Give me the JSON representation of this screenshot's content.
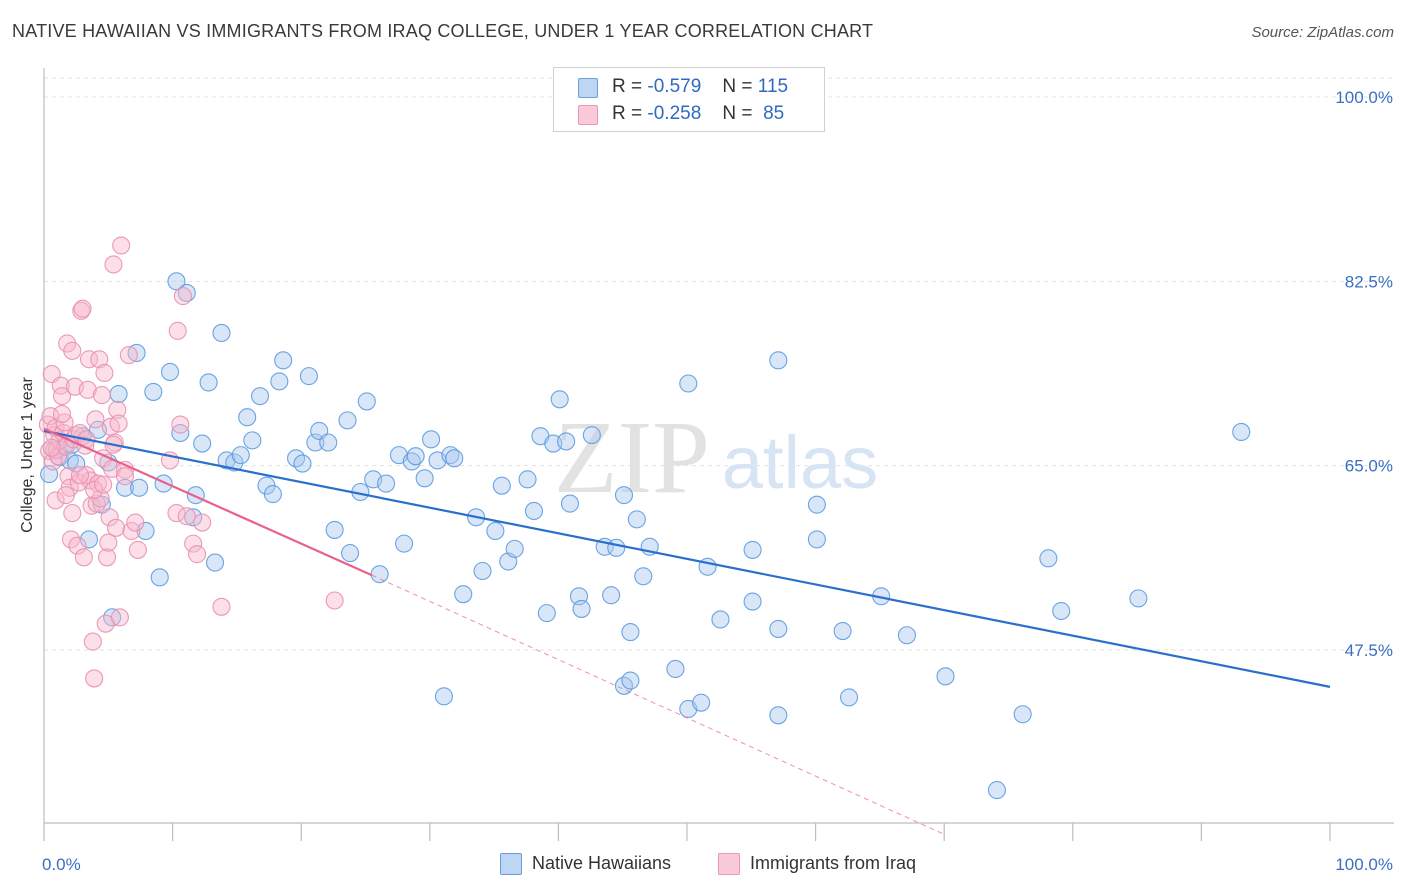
{
  "header": {
    "title": "NATIVE HAWAIIAN VS IMMIGRANTS FROM IRAQ COLLEGE, UNDER 1 YEAR CORRELATION CHART",
    "source": "Source: ZipAtlas.com"
  },
  "watermark": {
    "zip": "ZIP",
    "atlas": "atlas"
  },
  "legend": {
    "rows": [
      {
        "r_label": "R =",
        "r_value": "-0.579",
        "n_label": "N =",
        "n_value": "115",
        "color": "#a8c8f0"
      },
      {
        "r_label": "R =",
        "r_value": "-0.258",
        "n_label": "N =",
        "n_value": "85",
        "color": "#f8b8cc"
      }
    ]
  },
  "bottom_legend": {
    "items": [
      {
        "label": "Native Hawaiians",
        "color": "#a8c8f0"
      },
      {
        "label": "Immigrants from Iraq",
        "color": "#f8b8cc"
      }
    ]
  },
  "chart_data": {
    "type": "scatter",
    "title": "NATIVE HAWAIIAN VS IMMIGRANTS FROM IRAQ COLLEGE, UNDER 1 YEAR CORRELATION CHART",
    "xlabel": "",
    "ylabel": "College, Under 1 year",
    "xlim": [
      0,
      100
    ],
    "ylim": [
      30,
      102
    ],
    "x_tick_labels": [
      "0.0%",
      "100.0%"
    ],
    "y_ticks": [
      47.5,
      65.0,
      82.5,
      100.0
    ],
    "y_tick_labels": [
      "47.5%",
      "65.0%",
      "82.5%",
      "100.0%"
    ],
    "grid": true,
    "legend_position": "top-center",
    "series": [
      {
        "name": "Native Hawaiians",
        "color": "#5b9be0",
        "fill": "#a8c8f0",
        "line_color": "#2a6fcc",
        "trend": {
          "x0": 0,
          "y0": 68.3,
          "x1": 100,
          "y1": 44.0
        },
        "points": [
          [
            0.4,
            64.2
          ],
          [
            0.8,
            66.5
          ],
          [
            1.2,
            65.8
          ],
          [
            1.6,
            66.9
          ],
          [
            2.0,
            65.5
          ],
          [
            2.2,
            67.0
          ],
          [
            2.5,
            65.2
          ],
          [
            3.0,
            67.8
          ],
          [
            3.5,
            58.0
          ],
          [
            4.2,
            68.4
          ],
          [
            4.5,
            61.3
          ],
          [
            5.0,
            65.3
          ],
          [
            5.3,
            50.6
          ],
          [
            5.8,
            71.8
          ],
          [
            6.3,
            62.9
          ],
          [
            7.2,
            75.7
          ],
          [
            7.4,
            62.9
          ],
          [
            7.9,
            58.8
          ],
          [
            8.5,
            72.0
          ],
          [
            9.0,
            54.4
          ],
          [
            9.3,
            63.3
          ],
          [
            9.8,
            73.9
          ],
          [
            10.3,
            82.5
          ],
          [
            10.6,
            68.1
          ],
          [
            11.1,
            81.4
          ],
          [
            11.6,
            60.1
          ],
          [
            11.8,
            62.2
          ],
          [
            12.3,
            67.1
          ],
          [
            12.8,
            72.9
          ],
          [
            13.3,
            55.8
          ],
          [
            13.8,
            77.6
          ],
          [
            14.2,
            65.5
          ],
          [
            14.8,
            65.3
          ],
          [
            15.3,
            66.0
          ],
          [
            15.8,
            69.6
          ],
          [
            16.2,
            67.4
          ],
          [
            16.8,
            71.6
          ],
          [
            17.3,
            63.1
          ],
          [
            17.8,
            62.3
          ],
          [
            18.3,
            73.0
          ],
          [
            18.6,
            75.0
          ],
          [
            19.6,
            65.7
          ],
          [
            20.1,
            65.2
          ],
          [
            20.6,
            73.5
          ],
          [
            21.1,
            67.2
          ],
          [
            21.4,
            68.3
          ],
          [
            22.1,
            67.2
          ],
          [
            22.6,
            58.9
          ],
          [
            23.6,
            69.3
          ],
          [
            23.8,
            56.7
          ],
          [
            24.6,
            62.5
          ],
          [
            25.1,
            71.1
          ],
          [
            25.6,
            63.7
          ],
          [
            26.1,
            54.7
          ],
          [
            26.6,
            63.3
          ],
          [
            27.6,
            66.0
          ],
          [
            28.0,
            57.6
          ],
          [
            28.6,
            65.4
          ],
          [
            28.9,
            65.9
          ],
          [
            29.6,
            63.8
          ],
          [
            30.1,
            67.5
          ],
          [
            30.6,
            65.5
          ],
          [
            31.1,
            43.1
          ],
          [
            31.6,
            66.0
          ],
          [
            31.9,
            65.7
          ],
          [
            32.6,
            52.8
          ],
          [
            33.6,
            60.1
          ],
          [
            34.1,
            55.0
          ],
          [
            35.1,
            58.8
          ],
          [
            35.6,
            63.1
          ],
          [
            36.1,
            55.9
          ],
          [
            36.6,
            57.1
          ],
          [
            37.6,
            63.7
          ],
          [
            38.1,
            60.7
          ],
          [
            38.6,
            67.8
          ],
          [
            39.1,
            51.0
          ],
          [
            39.6,
            67.1
          ],
          [
            40.1,
            71.3
          ],
          [
            40.6,
            67.3
          ],
          [
            40.9,
            61.4
          ],
          [
            41.6,
            52.6
          ],
          [
            41.8,
            51.4
          ],
          [
            42.6,
            67.9
          ],
          [
            43.6,
            57.3
          ],
          [
            44.1,
            52.7
          ],
          [
            44.5,
            57.2
          ],
          [
            45.1,
            44.1
          ],
          [
            45.1,
            62.2
          ],
          [
            45.6,
            44.6
          ],
          [
            45.6,
            49.2
          ],
          [
            46.1,
            59.9
          ],
          [
            46.6,
            54.5
          ],
          [
            47.1,
            57.3
          ],
          [
            49.1,
            45.7
          ],
          [
            50.1,
            41.9
          ],
          [
            50.1,
            72.8
          ],
          [
            51.1,
            42.5
          ],
          [
            51.6,
            55.4
          ],
          [
            52.6,
            50.4
          ],
          [
            55.1,
            52.1
          ],
          [
            55.1,
            57.0
          ],
          [
            57.1,
            75.0
          ],
          [
            57.1,
            49.5
          ],
          [
            60.1,
            61.3
          ],
          [
            60.1,
            58.0
          ],
          [
            62.1,
            49.3
          ],
          [
            62.6,
            43.0
          ],
          [
            65.1,
            52.6
          ],
          [
            67.1,
            48.9
          ],
          [
            70.1,
            45.0
          ],
          [
            74.1,
            34.2
          ],
          [
            76.1,
            41.4
          ],
          [
            78.1,
            56.2
          ],
          [
            79.1,
            51.2
          ],
          [
            85.1,
            52.4
          ],
          [
            93.1,
            68.2
          ],
          [
            57.1,
            41.3
          ]
        ]
      },
      {
        "name": "Immigrants from Iraq",
        "color": "#e890b0",
        "fill": "#f8b8cc",
        "line_color": "#e8608c",
        "trend": {
          "x0": 0,
          "y0": 68.5,
          "x1": 25.5,
          "y1": 54.6
        },
        "trend_extension": {
          "x0": 25.5,
          "y0": 54.6,
          "x1": 70.0,
          "y1": 30.0
        },
        "points": [
          [
            0.3,
            68.9
          ],
          [
            0.4,
            66.4
          ],
          [
            0.5,
            69.7
          ],
          [
            0.6,
            73.7
          ],
          [
            0.7,
            65.4
          ],
          [
            0.8,
            67.9
          ],
          [
            0.9,
            68.6
          ],
          [
            1.0,
            66.5
          ],
          [
            1.1,
            65.9
          ],
          [
            1.2,
            67.4
          ],
          [
            1.3,
            72.6
          ],
          [
            1.4,
            71.6
          ],
          [
            1.5,
            68.1
          ],
          [
            1.6,
            69.1
          ],
          [
            1.7,
            66.8
          ],
          [
            1.8,
            76.6
          ],
          [
            1.9,
            64.0
          ],
          [
            2.0,
            62.9
          ],
          [
            2.1,
            58.0
          ],
          [
            2.2,
            75.9
          ],
          [
            2.3,
            67.5
          ],
          [
            2.4,
            72.5
          ],
          [
            2.5,
            67.9
          ],
          [
            2.6,
            57.4
          ],
          [
            2.7,
            63.4
          ],
          [
            2.8,
            68.1
          ],
          [
            2.9,
            79.7
          ],
          [
            3.0,
            79.9
          ],
          [
            3.1,
            56.3
          ],
          [
            3.2,
            66.9
          ],
          [
            3.3,
            64.1
          ],
          [
            3.4,
            72.2
          ],
          [
            3.5,
            75.1
          ],
          [
            3.6,
            63.6
          ],
          [
            3.7,
            61.2
          ],
          [
            3.8,
            48.3
          ],
          [
            3.9,
            44.8
          ],
          [
            4.0,
            69.4
          ],
          [
            4.1,
            61.4
          ],
          [
            4.2,
            63.3
          ],
          [
            4.3,
            75.1
          ],
          [
            4.4,
            61.9
          ],
          [
            4.5,
            71.7
          ],
          [
            4.6,
            65.7
          ],
          [
            4.7,
            73.8
          ],
          [
            4.8,
            50.0
          ],
          [
            4.9,
            56.3
          ],
          [
            5.0,
            57.7
          ],
          [
            5.1,
            60.1
          ],
          [
            5.2,
            68.7
          ],
          [
            5.3,
            64.7
          ],
          [
            5.4,
            84.1
          ],
          [
            5.5,
            67.2
          ],
          [
            5.6,
            59.1
          ],
          [
            5.7,
            70.3
          ],
          [
            5.8,
            69.0
          ],
          [
            5.9,
            50.6
          ],
          [
            6.0,
            85.9
          ],
          [
            6.3,
            64.6
          ],
          [
            6.6,
            75.5
          ],
          [
            6.8,
            58.8
          ],
          [
            7.1,
            59.6
          ],
          [
            7.3,
            57.0
          ],
          [
            9.8,
            65.5
          ],
          [
            10.3,
            60.5
          ],
          [
            10.6,
            68.9
          ],
          [
            10.8,
            81.1
          ],
          [
            11.1,
            60.2
          ],
          [
            11.6,
            57.6
          ],
          [
            11.9,
            56.6
          ],
          [
            12.3,
            59.6
          ],
          [
            13.8,
            51.6
          ],
          [
            22.6,
            52.2
          ],
          [
            0.9,
            61.7
          ],
          [
            1.7,
            62.2
          ],
          [
            2.8,
            64.1
          ],
          [
            3.9,
            62.7
          ],
          [
            5.4,
            67.0
          ],
          [
            10.4,
            77.8
          ],
          [
            3.3,
            67.5
          ],
          [
            6.3,
            64.0
          ],
          [
            0.6,
            66.7
          ],
          [
            1.4,
            69.9
          ],
          [
            2.2,
            60.5
          ],
          [
            4.6,
            63.2
          ]
        ]
      }
    ]
  }
}
